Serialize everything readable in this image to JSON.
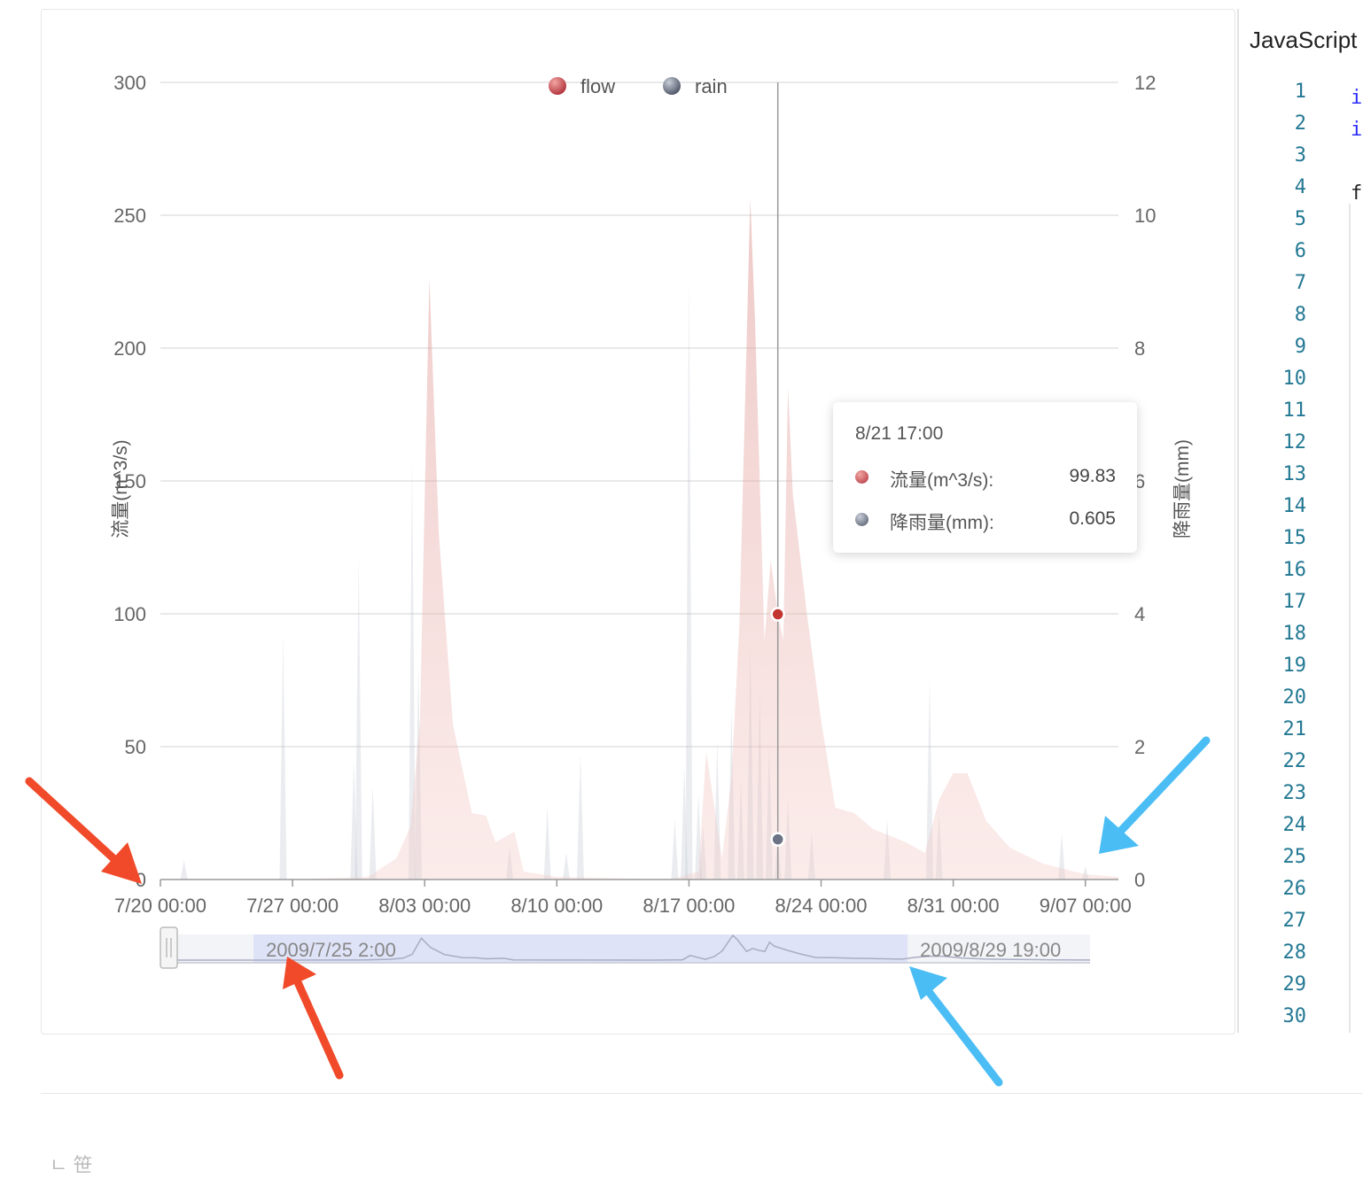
{
  "chart_data": {
    "type": "area",
    "legend": {
      "items": [
        "flow",
        "rain"
      ],
      "position": "top-center"
    },
    "yaxis_left": {
      "label": "流量(m^3/s)",
      "min": 0,
      "max": 300,
      "ticks": [
        "0",
        "50",
        "100",
        "150",
        "200",
        "250",
        "300"
      ]
    },
    "yaxis_right": {
      "label": "降雨量(mm)",
      "min": 0,
      "max": 12,
      "ticks": [
        "0",
        "2",
        "4",
        "6",
        "8",
        "10",
        "12"
      ]
    },
    "xaxis": {
      "min": "2009-07-20 00:00",
      "max": "2009-09-08 18:00",
      "tick_labels": [
        "7/20 00:00",
        "7/27 00:00",
        "8/03 00:00",
        "8/10 00:00",
        "8/17 00:00",
        "8/24 00:00",
        "8/31 00:00",
        "9/07 00:00"
      ]
    },
    "grid": true,
    "series": [
      {
        "name": "flow",
        "axis": "left",
        "color": "#c23531",
        "points": [
          [
            "2009-07-20 00:00",
            0
          ],
          [
            "2009-07-27 00:00",
            0
          ],
          [
            "2009-07-31 00:00",
            1
          ],
          [
            "2009-08-01 12:00",
            8
          ],
          [
            "2009-08-02 06:00",
            20
          ],
          [
            "2009-08-02 18:00",
            60
          ],
          [
            "2009-08-03 06:00",
            226
          ],
          [
            "2009-08-03 18:00",
            130
          ],
          [
            "2009-08-04 12:00",
            58
          ],
          [
            "2009-08-05 12:00",
            25
          ],
          [
            "2009-08-06 06:00",
            24
          ],
          [
            "2009-08-06 18:00",
            14
          ],
          [
            "2009-08-07 18:00",
            18
          ],
          [
            "2009-08-08 06:00",
            3
          ],
          [
            "2009-08-10 00:00",
            1
          ],
          [
            "2009-08-16 00:00",
            0
          ],
          [
            "2009-08-17 12:00",
            3
          ],
          [
            "2009-08-17 22:00",
            48
          ],
          [
            "2009-08-18 18:00",
            8
          ],
          [
            "2009-08-19 06:00",
            38
          ],
          [
            "2009-08-19 16:00",
            95
          ],
          [
            "2009-08-20 06:00",
            256
          ],
          [
            "2009-08-20 12:00",
            210
          ],
          [
            "2009-08-21 00:00",
            90
          ],
          [
            "2009-08-21 08:00",
            120
          ],
          [
            "2009-08-21 17:00",
            99.83
          ],
          [
            "2009-08-22 00:00",
            90
          ],
          [
            "2009-08-22 06:00",
            185
          ],
          [
            "2009-08-22 12:00",
            145
          ],
          [
            "2009-08-23 06:00",
            100
          ],
          [
            "2009-08-24 00:00",
            60
          ],
          [
            "2009-08-24 18:00",
            27
          ],
          [
            "2009-08-25 18:00",
            25
          ],
          [
            "2009-08-26 18:00",
            19
          ],
          [
            "2009-08-28 12:00",
            14
          ],
          [
            "2009-08-29 12:00",
            10
          ],
          [
            "2009-08-30 06:00",
            30
          ],
          [
            "2009-08-31 00:00",
            40
          ],
          [
            "2009-08-31 18:00",
            40
          ],
          [
            "2009-09-01 18:00",
            22
          ],
          [
            "2009-09-03 00:00",
            12
          ],
          [
            "2009-09-04 18:00",
            6
          ],
          [
            "2009-09-07 00:00",
            2
          ],
          [
            "2009-09-08 18:00",
            1
          ]
        ]
      },
      {
        "name": "rain",
        "axis": "right",
        "color": "#6b7385",
        "points": [
          [
            "2009-07-21 06:00",
            0.3
          ],
          [
            "2009-07-26 12:00",
            3.7
          ],
          [
            "2009-07-30 06:00",
            1.8
          ],
          [
            "2009-07-30 12:00",
            4.9
          ],
          [
            "2009-07-31 06:00",
            1.4
          ],
          [
            "2009-08-02 08:00",
            6.3
          ],
          [
            "2009-08-02 16:00",
            3.2
          ],
          [
            "2009-08-07 12:00",
            0.5
          ],
          [
            "2009-08-09 12:00",
            1.1
          ],
          [
            "2009-08-10 12:00",
            0.4
          ],
          [
            "2009-08-11 06:00",
            1.9
          ],
          [
            "2009-08-16 06:00",
            0.9
          ],
          [
            "2009-08-16 18:00",
            1.7
          ],
          [
            "2009-08-17 00:00",
            9.1
          ],
          [
            "2009-08-17 12:00",
            1.3
          ],
          [
            "2009-08-17 18:00",
            0.8
          ],
          [
            "2009-08-18 12:00",
            2.1
          ],
          [
            "2009-08-19 06:00",
            2.6
          ],
          [
            "2009-08-19 18:00",
            1.5
          ],
          [
            "2009-08-20 06:00",
            3.5
          ],
          [
            "2009-08-20 18:00",
            2.8
          ],
          [
            "2009-08-21 06:00",
            2.0
          ],
          [
            "2009-08-21 17:00",
            0.605
          ],
          [
            "2009-08-22 06:00",
            1.2
          ],
          [
            "2009-08-23 12:00",
            0.7
          ],
          [
            "2009-08-27 12:00",
            0.9
          ],
          [
            "2009-08-29 18:00",
            3.0
          ],
          [
            "2009-08-30 06:00",
            1.0
          ],
          [
            "2009-09-05 18:00",
            0.7
          ],
          [
            "2009-09-07 00:00",
            0.2
          ]
        ]
      }
    ],
    "data_zoom": {
      "start_label": "2009/7/25 2:00",
      "end_label": "2009/8/29 19:00"
    },
    "tooltip": {
      "title": "8/21 17:00",
      "rows": [
        {
          "label": "流量(m^3/s):",
          "value": "99.83"
        },
        {
          "label": "降雨量(mm):",
          "value": "0.605"
        }
      ]
    },
    "crosshair_x": "2009-08-21 17:00"
  },
  "code_panel": {
    "title": "JavaScript",
    "line_numbers": [
      "1",
      "2",
      "3",
      "4",
      "5",
      "6",
      "7",
      "8",
      "9",
      "10",
      "11",
      "12",
      "13",
      "14",
      "15",
      "16",
      "17",
      "18",
      "19",
      "20",
      "21",
      "22",
      "23",
      "24",
      "25",
      "26",
      "27",
      "28",
      "29",
      "30"
    ],
    "fragments": [
      "in",
      "in",
      "fo"
    ]
  },
  "footer": {
    "text": "ㄴ 笹"
  },
  "colors": {
    "flow": "#c23531",
    "rain": "#6b7385",
    "grid": "#dcdcdc",
    "zoom_selection": "#dfe3f7",
    "annotation_red": "#f04a2a",
    "annotation_blue": "#4bbdf5"
  }
}
